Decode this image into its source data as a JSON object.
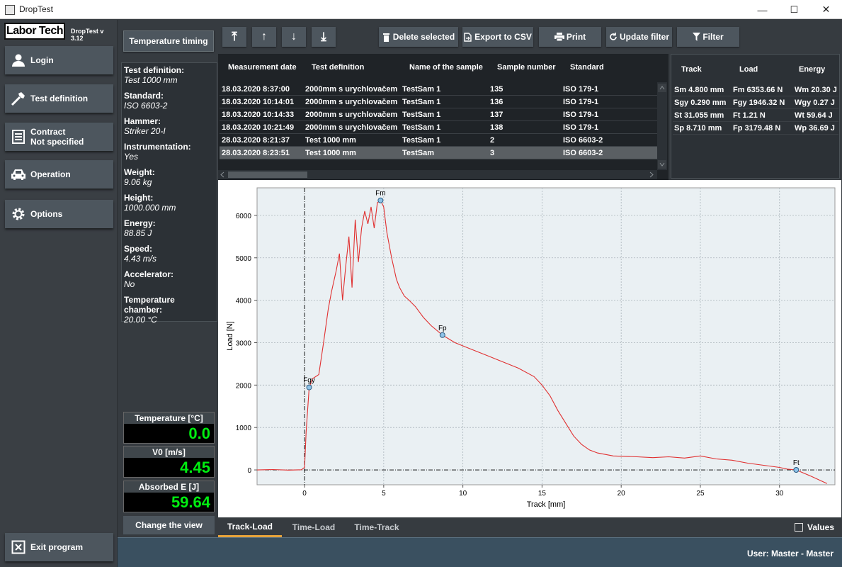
{
  "window": {
    "title": "DropTest",
    "min": "—",
    "max": "☐",
    "close": "✕"
  },
  "sidebar": {
    "logo": "Labor Tech",
    "version": "DropTest v 3.12",
    "items": [
      {
        "label": "Login",
        "icon": "user-icon"
      },
      {
        "label": "Test definition",
        "icon": "hammer-icon"
      },
      {
        "label": "Contract",
        "sub": "Not specified",
        "icon": "document-icon"
      },
      {
        "label": "Operation",
        "icon": "car-icon"
      },
      {
        "label": "Options",
        "icon": "gear-icon"
      }
    ],
    "exit": "Exit program"
  },
  "center": {
    "temperature_timing": "Temperature timing",
    "info": [
      {
        "label": "Test definition:",
        "value": "Test 1000 mm"
      },
      {
        "label": "Standard:",
        "value": "ISO 6603-2"
      },
      {
        "label": "Hammer:",
        "value": "Striker 20-I"
      },
      {
        "label": "Instrumentation:",
        "value": "Yes"
      },
      {
        "label": "Weight:",
        "value": "9.06   kg"
      },
      {
        "label": "Height:",
        "value": "1000.000   mm"
      },
      {
        "label": "Energy:",
        "value": "88.85   J"
      },
      {
        "label": "Speed:",
        "value": "4.43   m/s"
      },
      {
        "label": "Accelerator:",
        "value": "No"
      },
      {
        "label": "Temperature chamber:",
        "value": "20.00 °C"
      }
    ],
    "readouts": [
      {
        "label": "Temperature [°C]",
        "value": "0.0"
      },
      {
        "label": "V0 [m/s]",
        "value": "4.45"
      },
      {
        "label": "Absorbed E [J]",
        "value": "59.64"
      }
    ],
    "change_view": "Change the view"
  },
  "toolbar": {
    "first": "⤒",
    "up": "↑",
    "down": "↓",
    "last": "⤓",
    "delete": "Delete selected",
    "export": "Export to CSV",
    "print": "Print",
    "update_filter": "Update filter",
    "filter": "Filter"
  },
  "table": {
    "headers": [
      "Measurement date",
      "Test definition",
      "Name of the sample",
      "Sample number",
      "Standard"
    ],
    "rows": [
      [
        "18.03.2020 8:37:00",
        "2000mm s urychlovačem",
        "TestSam 1",
        "135",
        "ISO 179-1"
      ],
      [
        "18.03.2020 10:14:01",
        "2000mm s urychlovačem",
        "TestSam 1",
        "136",
        "ISO 179-1"
      ],
      [
        "18.03.2020 10:14:33",
        "2000mm s urychlovačem",
        "TestSam 1",
        "137",
        "ISO 179-1"
      ],
      [
        "18.03.2020 10:21:49",
        "2000mm s urychlovačem",
        "TestSam 1",
        "138",
        "ISO 179-1"
      ],
      [
        "28.03.2020 8:21:37",
        "Test 1000 mm",
        "TestSam 1",
        "2",
        "ISO 6603-2"
      ],
      [
        "28.03.2020 8:23:51",
        "Test 1000 mm",
        "TestSam",
        "3",
        "ISO 6603-2"
      ]
    ],
    "selected_row": 5
  },
  "results": {
    "headers": [
      "Track",
      "Load",
      "Energy"
    ],
    "rows": [
      [
        "Sm 4.800 mm",
        "Fm 6353.66 N",
        "Wm 20.30 J"
      ],
      [
        "Sgy 0.290 mm",
        "Fgy 1946.32 N",
        "Wgy 0.27 J"
      ],
      [
        "St 31.055 mm",
        "Ft 1.21 N",
        "Wt 59.64 J"
      ],
      [
        "Sp 8.710 mm",
        "Fp 3179.48 N",
        "Wp 36.69 J"
      ]
    ]
  },
  "chart_data": {
    "type": "line",
    "xlabel": "Track [mm]",
    "ylabel": "Load [N]",
    "xlim": [
      -3,
      33.5
    ],
    "ylim": [
      -350,
      6650
    ],
    "xticks": [
      0,
      5,
      10,
      15,
      20,
      25,
      30
    ],
    "yticks": [
      0,
      1000,
      2000,
      3000,
      4000,
      5000,
      6000
    ],
    "grid": true,
    "line_color": "#e03030",
    "series": [
      {
        "x": [
          -3,
          -2,
          -1,
          -0.2,
          0,
          0.1,
          0.29,
          0.5,
          0.9,
          1.2,
          1.5,
          1.7,
          2.0,
          2.2,
          2.4,
          2.6,
          2.8,
          3.0,
          3.2,
          3.4,
          3.6,
          3.8,
          4.0,
          4.2,
          4.4,
          4.6,
          4.8,
          5.0,
          5.2,
          5.5,
          5.8,
          6.0,
          6.3,
          6.6,
          7.0,
          7.5,
          8.0,
          8.71,
          9.5,
          10.5,
          11.5,
          12.5,
          13.5,
          14.5,
          15.0,
          15.5,
          16.0,
          16.5,
          17.0,
          17.5,
          18.0,
          18.5,
          19.5,
          21,
          22,
          23,
          24,
          25,
          26,
          27,
          28,
          29,
          30,
          30.5,
          31.055,
          32,
          33
        ],
        "y": [
          0,
          10,
          -5,
          5,
          60,
          900,
          1946,
          2150,
          2250,
          3000,
          3800,
          4200,
          4700,
          5100,
          4000,
          4800,
          5500,
          4300,
          5900,
          4900,
          5700,
          6100,
          5800,
          6200,
          5700,
          6300,
          6354,
          6200,
          5600,
          5000,
          4500,
          4300,
          4100,
          4000,
          3850,
          3600,
          3400,
          3179,
          3000,
          2850,
          2700,
          2550,
          2400,
          2200,
          2000,
          1750,
          1400,
          1100,
          800,
          600,
          470,
          400,
          330,
          310,
          290,
          310,
          280,
          330,
          260,
          230,
          160,
          110,
          60,
          20,
          1,
          -150,
          -320
        ]
      }
    ],
    "markers": [
      {
        "name": "Fgy",
        "x": 0.29,
        "y": 1946
      },
      {
        "name": "Fm",
        "x": 4.8,
        "y": 6354
      },
      {
        "name": "Fp",
        "x": 8.71,
        "y": 3179
      },
      {
        "name": "Ft",
        "x": 31.055,
        "y": 1
      }
    ]
  },
  "tabs": [
    {
      "label": "Track-Load",
      "active": true
    },
    {
      "label": "Time-Load",
      "active": false
    },
    {
      "label": "Time-Track",
      "active": false
    }
  ],
  "values_label": "Values",
  "status": {
    "user": "User:  Master  -  Master"
  }
}
